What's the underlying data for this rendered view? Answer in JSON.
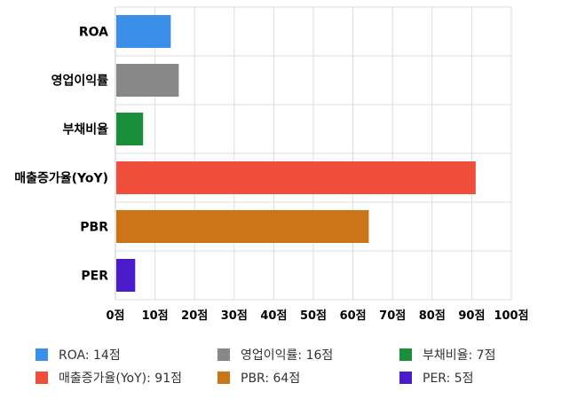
{
  "chart_data": {
    "type": "bar",
    "orientation": "horizontal",
    "categories": [
      "ROA",
      "영업이익률",
      "부채비율",
      "매출증가율(YoY)",
      "PBR",
      "PER"
    ],
    "values": [
      14,
      16,
      7,
      91,
      64,
      5
    ],
    "unit": "점",
    "colors": [
      "#3b8fe8",
      "#888888",
      "#1a8f3a",
      "#ef4f3a",
      "#cc7418",
      "#4b1ccb"
    ],
    "xlim": [
      0,
      100
    ],
    "xticks": [
      0,
      10,
      20,
      30,
      40,
      50,
      60,
      70,
      80,
      90,
      100
    ],
    "tick_labels": [
      "0점",
      "10점",
      "20점",
      "30점",
      "40점",
      "50점",
      "60점",
      "70점",
      "80점",
      "90점",
      "100점"
    ],
    "grid": true,
    "legend_position": "bottom",
    "legend": [
      {
        "label": "ROA: 14점",
        "color": "#3b8fe8"
      },
      {
        "label": "영업이익률: 16점",
        "color": "#888888"
      },
      {
        "label": "부채비율: 7점",
        "color": "#1a8f3a"
      },
      {
        "label": "매출증가율(YoY): 91점",
        "color": "#ef4f3a"
      },
      {
        "label": "PBR: 64점",
        "color": "#cc7418"
      },
      {
        "label": "PER: 5점",
        "color": "#4b1ccb"
      }
    ]
  }
}
